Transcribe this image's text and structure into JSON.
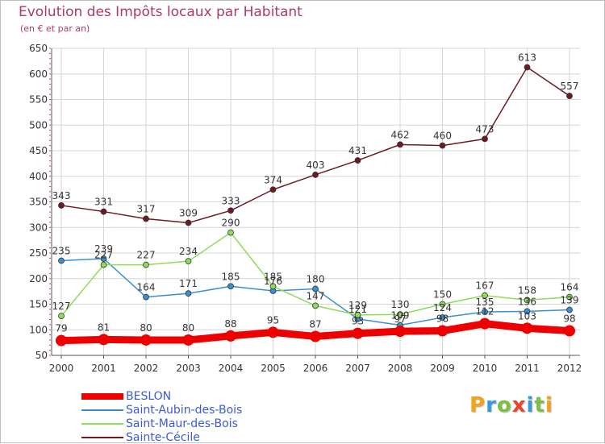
{
  "title": "Evolution des Impôts locaux par Habitant",
  "subtitle": "(en € et par an)",
  "logo": {
    "text": "Proxiti",
    "letter_colors": [
      "#f2a21b",
      "#3a9ad9",
      "#7bc043",
      "#e8452c",
      "#3a9ad9",
      "#7bc043",
      "#f2a21b"
    ]
  },
  "chart_data": {
    "type": "line",
    "categories": [
      "2000",
      "2001",
      "2002",
      "2003",
      "2004",
      "2005",
      "2006",
      "2007",
      "2008",
      "2009",
      "2010",
      "2011",
      "2012"
    ],
    "ylim": [
      50,
      650
    ],
    "yticks": [
      50,
      100,
      150,
      200,
      250,
      300,
      350,
      400,
      450,
      500,
      550,
      600,
      650
    ],
    "grid": true,
    "legend_position": "bottom-left",
    "series": [
      {
        "name": "BESLON",
        "color": "#ee0000",
        "thick": true,
        "values": [
          79,
          81,
          80,
          80,
          88,
          95,
          87,
          93,
          97,
          98,
          112,
          103,
          98
        ],
        "labels": [
          "79",
          "81",
          "80",
          "80",
          "88",
          "95",
          "87",
          "93",
          "97",
          "98",
          "112",
          "103",
          "98"
        ]
      },
      {
        "name": "Saint-Aubin-des-Bois",
        "color": "#3a8fd0",
        "thick": false,
        "values": [
          235,
          239,
          164,
          171,
          185,
          176,
          180,
          121,
          109,
          124,
          135,
          136,
          139
        ],
        "labels": [
          "235",
          "239",
          "164",
          "171",
          "185",
          "176",
          "180",
          "121",
          "109",
          "124",
          "135",
          "136",
          "139"
        ]
      },
      {
        "name": "Saint-Maur-des-Bois",
        "color": "#8fdb5a",
        "thick": false,
        "values": [
          127,
          227,
          227,
          234,
          290,
          185,
          147,
          129,
          130,
          150,
          167,
          158,
          164
        ],
        "labels": [
          "127",
          "227",
          "227",
          "234",
          "290",
          "185",
          "147",
          "129",
          "130",
          "150",
          "167",
          "158",
          "164"
        ]
      },
      {
        "name": "Sainte-Cécile",
        "color": "#6e1a22",
        "thick": false,
        "values": [
          343,
          331,
          317,
          309,
          333,
          374,
          403,
          431,
          462,
          460,
          473,
          613,
          557
        ],
        "labels": [
          "343",
          "331",
          "317",
          "309",
          "333",
          "374",
          "403",
          "431",
          "462",
          "460",
          "473",
          "613",
          "557"
        ]
      }
    ]
  }
}
